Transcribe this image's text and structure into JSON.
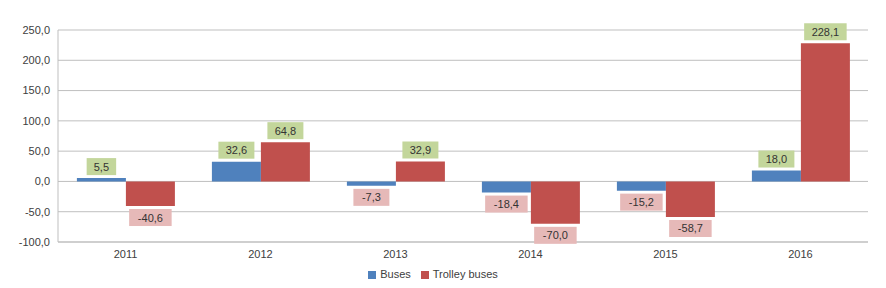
{
  "chart_data": {
    "type": "bar",
    "categories": [
      "2011",
      "2012",
      "2013",
      "2014",
      "2015",
      "2016"
    ],
    "series": [
      {
        "name": "Buses",
        "color": "#4f81bd",
        "values": [
          5.5,
          32.6,
          -7.3,
          -18.4,
          -15.2,
          18.0
        ],
        "value_labels": [
          "5,5",
          "32,6",
          "-7,3",
          "-18,4",
          "-15,2",
          "18,0"
        ]
      },
      {
        "name": "Trolley buses",
        "color": "#c0504d",
        "values": [
          -40.6,
          64.8,
          32.9,
          -70.0,
          -58.7,
          228.1
        ],
        "value_labels": [
          "-40,6",
          "64,8",
          "32,9",
          "-70,0",
          "-58,7",
          "228,1"
        ]
      }
    ],
    "ylim": [
      -100,
      250
    ],
    "yticks": [
      {
        "value": -100,
        "label": "-100,0"
      },
      {
        "value": -50,
        "label": "-50,0"
      },
      {
        "value": 0,
        "label": "0,0"
      },
      {
        "value": 50,
        "label": "50,0"
      },
      {
        "value": 100,
        "label": "100,0"
      },
      {
        "value": 150,
        "label": "150,0"
      },
      {
        "value": 200,
        "label": "200,0"
      },
      {
        "value": 250,
        "label": "250,0"
      }
    ],
    "grid": true,
    "legend": "bottom",
    "data_labels": true
  }
}
